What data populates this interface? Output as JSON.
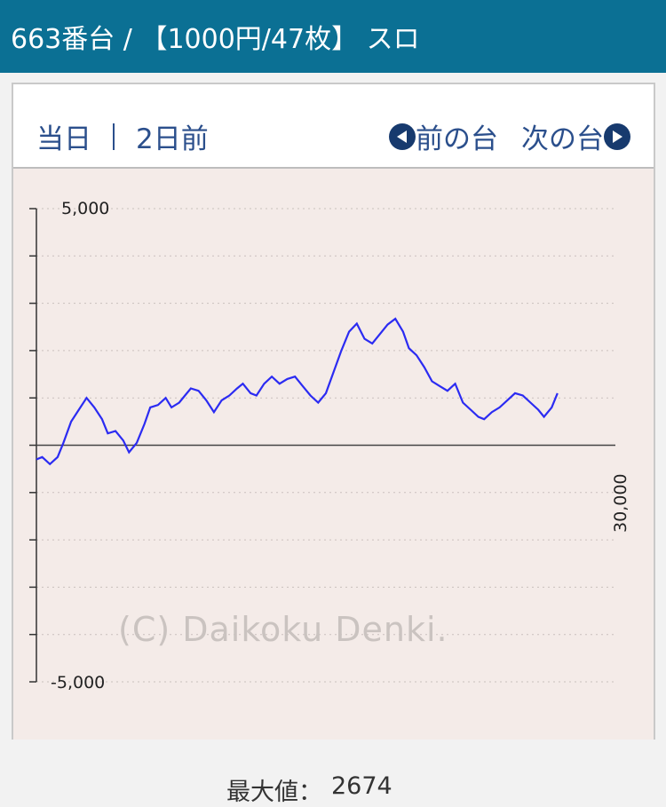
{
  "header": {
    "title": "663番台 / 【1000円/47枚】 スロ"
  },
  "nav": {
    "today": "当日",
    "two_days_ago": "2日前",
    "prev_machine": "前の台",
    "next_machine": "次の台"
  },
  "chart_data": {
    "type": "line",
    "ymax_label": "5,000",
    "ymin_label": "-5,000",
    "xmax_label": "30,000",
    "ylim": [
      -5000,
      5000
    ],
    "xlim": [
      0,
      30000
    ],
    "grid": true,
    "max_label": "最大値：",
    "max_value": "2674",
    "watermark": "(C) Daikoku Denki.",
    "series": [
      {
        "color": "#2b2bf2",
        "x": [
          0,
          300,
          700,
          1100,
          1400,
          1800,
          2200,
          2600,
          3000,
          3400,
          3700,
          4100,
          4500,
          4800,
          5200,
          5600,
          5900,
          6300,
          6700,
          7000,
          7400,
          7700,
          8000,
          8400,
          8800,
          9200,
          9600,
          10000,
          10400,
          10700,
          11100,
          11400,
          11800,
          12200,
          12600,
          13000,
          13400,
          13800,
          14200,
          14600,
          15000,
          15400,
          15800,
          16200,
          16600,
          17000,
          17400,
          17800,
          18200,
          18600,
          19000,
          19300,
          19700,
          20100,
          20500,
          20900,
          21300,
          21700,
          22100,
          22500,
          22900,
          23200,
          23600,
          24000,
          24400,
          24800,
          25200,
          25600,
          26000,
          26300,
          26700,
          27000
        ],
        "y": [
          -300,
          -250,
          -400,
          -250,
          50,
          500,
          750,
          1000,
          800,
          550,
          250,
          300,
          100,
          -150,
          50,
          450,
          800,
          850,
          1000,
          800,
          900,
          1050,
          1200,
          1150,
          950,
          700,
          950,
          1050,
          1200,
          1300,
          1100,
          1050,
          1300,
          1450,
          1300,
          1400,
          1450,
          1250,
          1050,
          900,
          1100,
          1550,
          2000,
          2400,
          2570,
          2250,
          2150,
          2350,
          2550,
          2674,
          2400,
          2050,
          1900,
          1650,
          1350,
          1250,
          1150,
          1300,
          900,
          750,
          600,
          550,
          700,
          800,
          950,
          1100,
          1050,
          900,
          750,
          600,
          800,
          1100
        ]
      }
    ]
  }
}
